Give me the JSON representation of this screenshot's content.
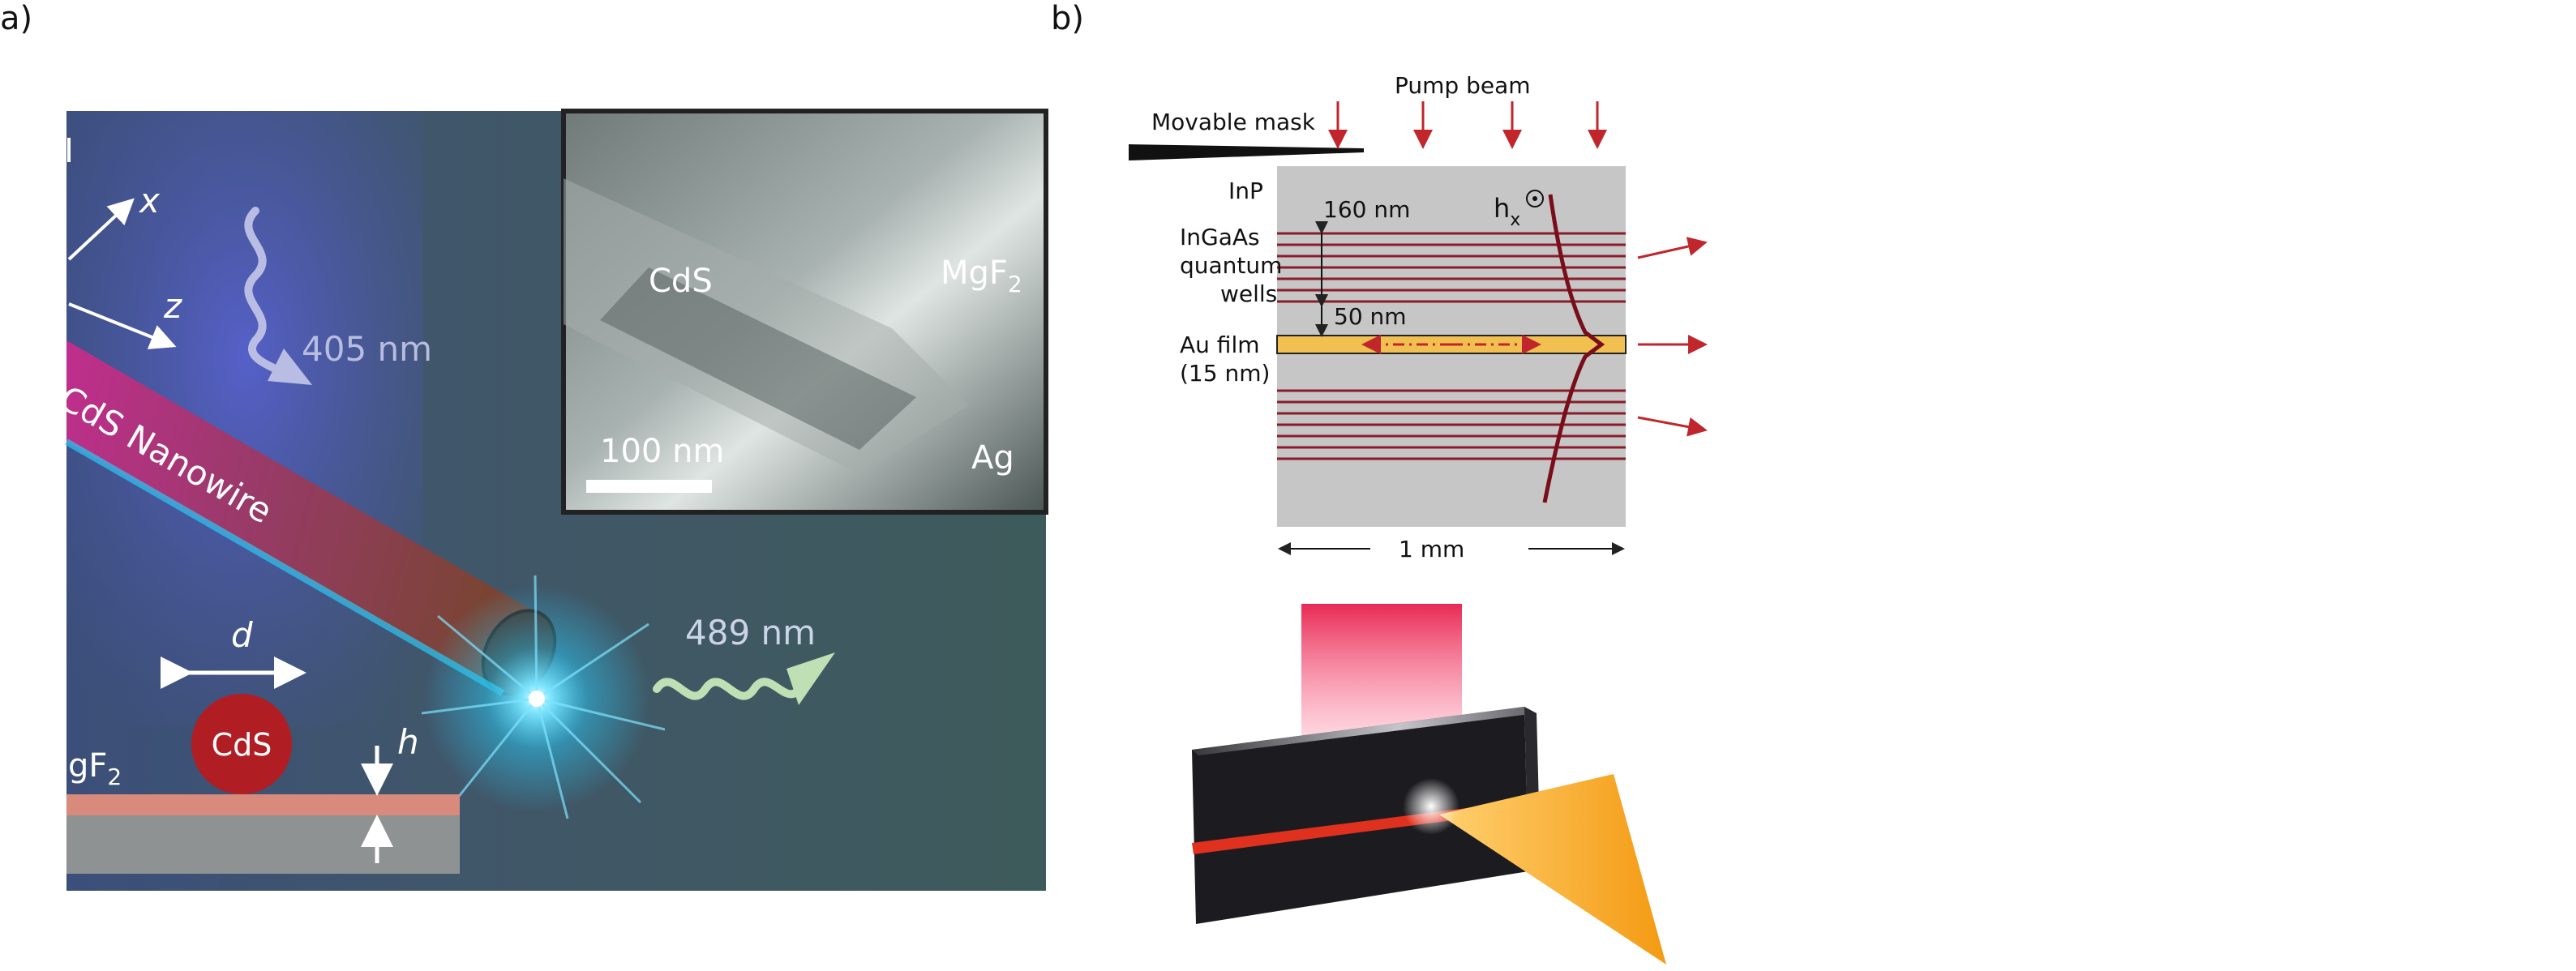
{
  "panel_a": {
    "label": "a)",
    "axes": {
      "x": "x",
      "z": "z"
    },
    "pump_wavelength": "405 nm",
    "emission_wavelength": "489 nm",
    "nanowire_label": "CdS Nanowire",
    "cross_section": {
      "d": "d",
      "core": "CdS",
      "h": "h",
      "substrate_left": "gF",
      "substrate_sub": "2"
    },
    "inset": {
      "material_1": "CdS",
      "material_2": "MgF",
      "material_2_sub": "2",
      "metal": "Ag",
      "scalebar": "100 nm"
    }
  },
  "panel_b": {
    "label": "b)",
    "pump_beam": "Pump beam",
    "movable_mask": "Movable mask",
    "inp": "InP",
    "qw_label": [
      "InGaAs",
      "quantum",
      "wells"
    ],
    "spacing_1": "160 nm",
    "spacing_2": "50 nm",
    "au_film": [
      "Au film",
      "(15 nm)"
    ],
    "field_main": "h",
    "field_sub": "x",
    "width": "1 mm"
  },
  "colors": {
    "accent_red": "#c0262c",
    "wire_pink": "#d8329a",
    "glow_cyan": "#29c6f2",
    "gold_film": "#f1c050",
    "bg_teal": "#3f5a5b"
  }
}
